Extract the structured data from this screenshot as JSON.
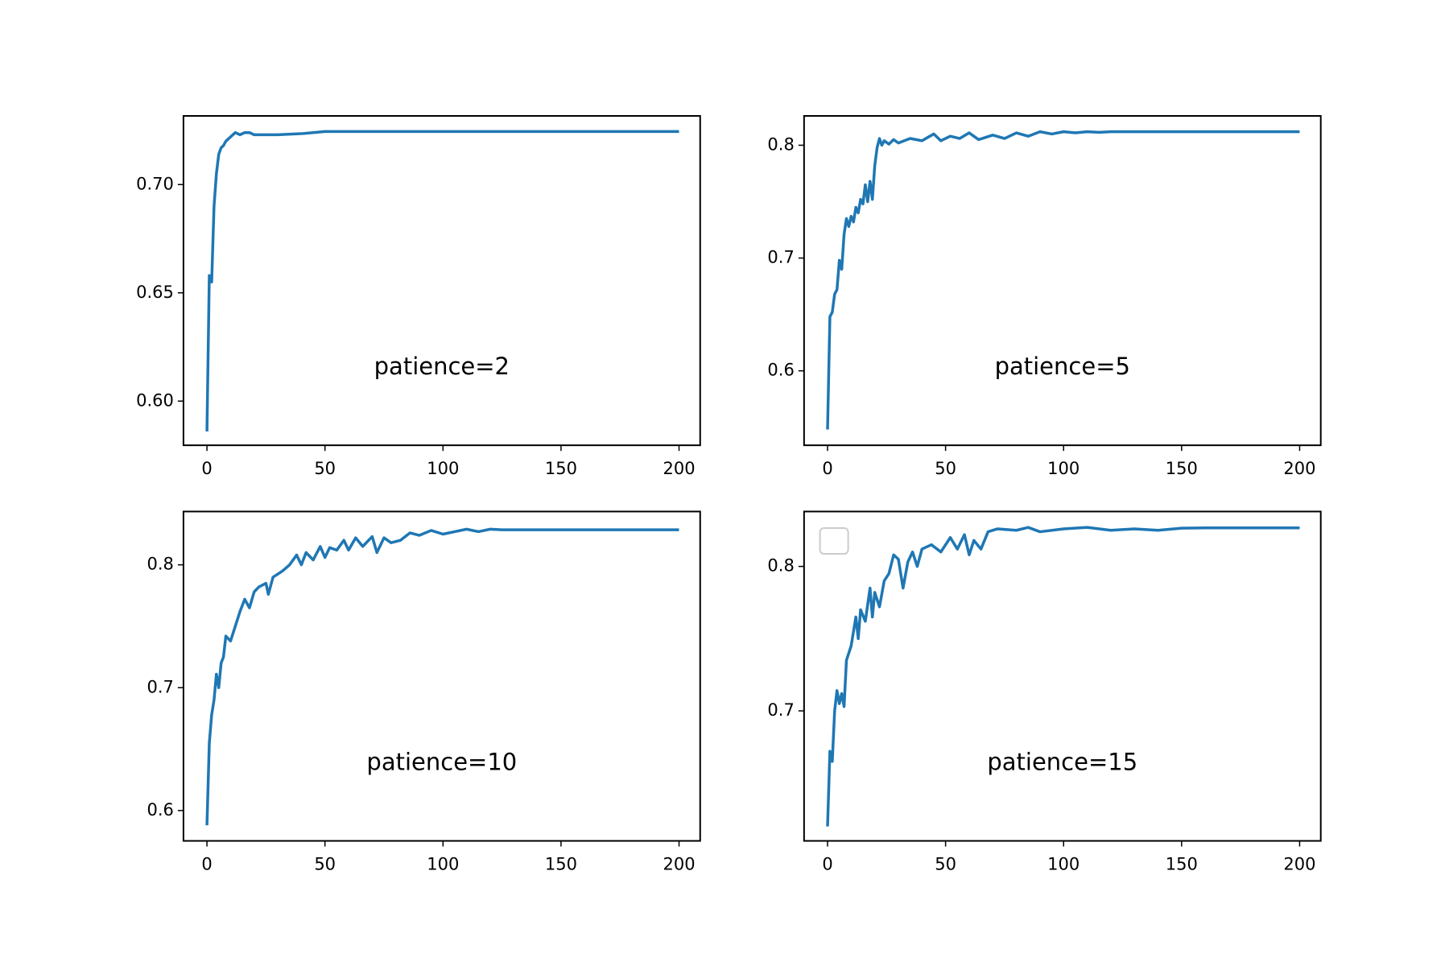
{
  "chart_data": [
    {
      "type": "line",
      "annotation": "patience=2",
      "color": "#1f77b4",
      "x": [
        0,
        1,
        2,
        3,
        4,
        5,
        6,
        7,
        8,
        10,
        12,
        14,
        16,
        18,
        20,
        25,
        30,
        40,
        50,
        60,
        200
      ],
      "values": [
        0.586,
        0.658,
        0.655,
        0.69,
        0.705,
        0.714,
        0.717,
        0.718,
        0.72,
        0.722,
        0.724,
        0.723,
        0.724,
        0.724,
        0.723,
        0.723,
        0.723,
        0.7235,
        0.7245,
        0.7245,
        0.7245
      ],
      "xlim": [
        -9.95,
        208.95
      ],
      "xticks": [
        0,
        50,
        100,
        150,
        200
      ],
      "ylim": [
        0.5796,
        0.7317
      ],
      "yticks": [
        {
          "value": 0.6,
          "label": "0.60"
        },
        0.65,
        {
          "value": 0.7,
          "label": "0.70"
        }
      ]
    },
    {
      "type": "line",
      "annotation": "patience=5",
      "color": "#1f77b4",
      "x": [
        0,
        1,
        2,
        3,
        4,
        5,
        6,
        7,
        8,
        9,
        10,
        11,
        12,
        13,
        14,
        15,
        16,
        17,
        18,
        19,
        20,
        21,
        22,
        23,
        24,
        26,
        28,
        30,
        35,
        40,
        45,
        48,
        52,
        56,
        60,
        64,
        70,
        75,
        80,
        85,
        90,
        95,
        100,
        105,
        110,
        115,
        120,
        200
      ],
      "values": [
        0.548,
        0.648,
        0.652,
        0.668,
        0.672,
        0.698,
        0.69,
        0.721,
        0.735,
        0.728,
        0.737,
        0.732,
        0.745,
        0.74,
        0.752,
        0.748,
        0.765,
        0.75,
        0.768,
        0.752,
        0.782,
        0.798,
        0.806,
        0.8,
        0.804,
        0.801,
        0.805,
        0.802,
        0.806,
        0.804,
        0.81,
        0.804,
        0.808,
        0.806,
        0.811,
        0.805,
        0.809,
        0.806,
        0.811,
        0.808,
        0.812,
        0.81,
        0.812,
        0.811,
        0.812,
        0.8115,
        0.812,
        0.812
      ],
      "xlim": [
        -9.95,
        208.95
      ],
      "xticks": [
        0,
        50,
        100,
        150,
        200
      ],
      "ylim": [
        0.534,
        0.826
      ],
      "yticks": [
        0.6,
        0.7,
        0.8
      ]
    },
    {
      "type": "line",
      "annotation": "patience=10",
      "color": "#1f77b4",
      "x": [
        0,
        1,
        2,
        3,
        4,
        5,
        6,
        7,
        8,
        10,
        12,
        14,
        16,
        18,
        20,
        22,
        25,
        26,
        28,
        32,
        35,
        38,
        40,
        42,
        45,
        48,
        50,
        52,
        55,
        58,
        60,
        63,
        66,
        70,
        72,
        75,
        78,
        82,
        86,
        90,
        95,
        100,
        105,
        110,
        115,
        120,
        125,
        200
      ],
      "values": [
        0.588,
        0.655,
        0.678,
        0.69,
        0.711,
        0.7,
        0.72,
        0.725,
        0.742,
        0.738,
        0.75,
        0.762,
        0.772,
        0.765,
        0.778,
        0.782,
        0.785,
        0.776,
        0.79,
        0.795,
        0.8,
        0.808,
        0.8,
        0.81,
        0.804,
        0.815,
        0.806,
        0.814,
        0.812,
        0.82,
        0.812,
        0.822,
        0.815,
        0.823,
        0.81,
        0.822,
        0.818,
        0.82,
        0.826,
        0.824,
        0.828,
        0.825,
        0.827,
        0.829,
        0.827,
        0.829,
        0.8285,
        0.8285
      ],
      "xlim": [
        -9.95,
        208.95
      ],
      "xticks": [
        0,
        50,
        100,
        150,
        200
      ],
      "ylim": [
        0.5753,
        0.8434
      ],
      "yticks": [
        0.6,
        0.7,
        0.8
      ]
    },
    {
      "type": "line",
      "annotation": "patience=15",
      "color": "#1f77b4",
      "x": [
        0,
        1,
        2,
        3,
        4,
        5,
        6,
        7,
        8,
        10,
        12,
        13,
        14,
        16,
        18,
        19,
        20,
        22,
        24,
        26,
        28,
        30,
        32,
        34,
        36,
        38,
        40,
        44,
        48,
        52,
        55,
        58,
        60,
        62,
        65,
        68,
        72,
        80,
        85,
        90,
        100,
        110,
        120,
        130,
        140,
        150,
        160,
        200
      ],
      "values": [
        0.62,
        0.672,
        0.665,
        0.7,
        0.714,
        0.705,
        0.712,
        0.703,
        0.735,
        0.745,
        0.765,
        0.75,
        0.77,
        0.762,
        0.785,
        0.765,
        0.782,
        0.772,
        0.79,
        0.795,
        0.808,
        0.805,
        0.785,
        0.803,
        0.81,
        0.8,
        0.812,
        0.815,
        0.81,
        0.82,
        0.812,
        0.822,
        0.808,
        0.818,
        0.812,
        0.824,
        0.826,
        0.825,
        0.827,
        0.824,
        0.826,
        0.827,
        0.825,
        0.826,
        0.825,
        0.8265,
        0.8267,
        0.8267
      ],
      "xlim": [
        -9.95,
        208.95
      ],
      "xticks": [
        0,
        50,
        100,
        150,
        200
      ],
      "ylim": [
        0.61,
        0.838
      ],
      "yticks": [
        0.7,
        0.8
      ]
    }
  ]
}
